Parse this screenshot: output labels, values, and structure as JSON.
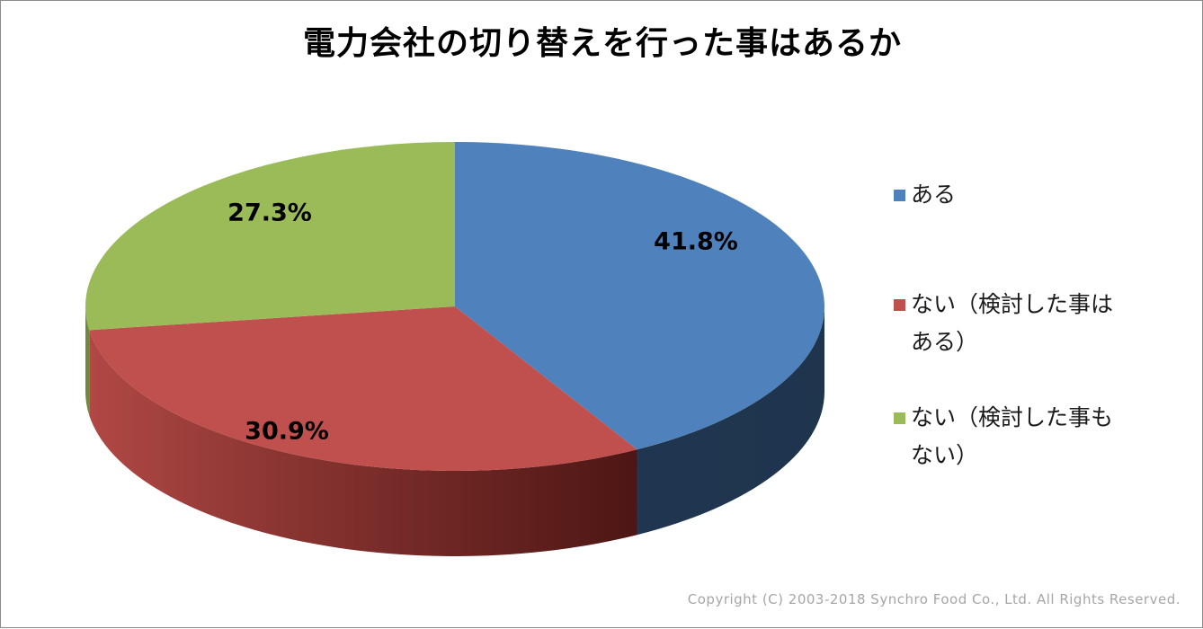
{
  "chart_data": {
    "type": "pie",
    "title": "電力会社の切り替えを行った事はあるか",
    "legend_position": "right",
    "slices": [
      {
        "label": "ある",
        "value": 41.8,
        "value_label": "41.8%",
        "color": "#4f81bd"
      },
      {
        "label": "ない（検討した事はある）",
        "value": 30.9,
        "value_label": "30.9%",
        "color": "#c0504d"
      },
      {
        "label": "ない（検討した事もない）",
        "value": 27.3,
        "value_label": "27.3%",
        "color": "#9bbb59"
      }
    ]
  },
  "legend": {
    "items": [
      {
        "lines": [
          "ある"
        ]
      },
      {
        "lines": [
          "ない（検討した事は",
          "ある）"
        ]
      },
      {
        "lines": [
          "ない（検討した事も",
          "ない）"
        ]
      }
    ]
  },
  "copyright": "Copyright (C) 2003-2018  Synchro Food Co., Ltd. All Rights Reserved."
}
